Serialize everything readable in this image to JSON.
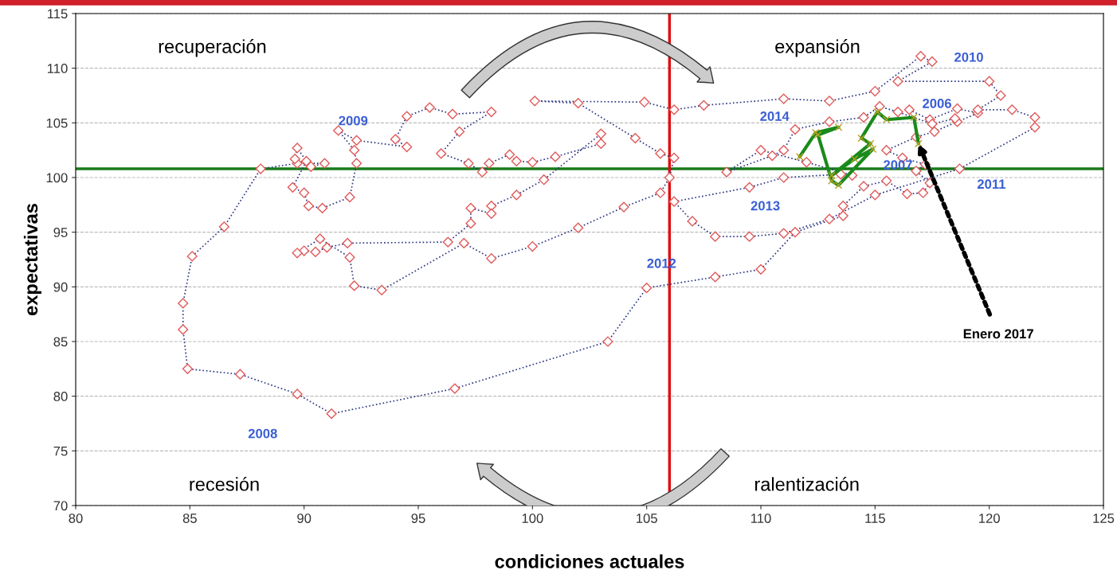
{
  "chart_data": {
    "type": "line",
    "xlabel": "condiciones actuales",
    "ylabel": "expectativas",
    "xlim": [
      80,
      125
    ],
    "xticks": [
      80,
      85,
      90,
      95,
      100,
      105,
      110,
      115,
      120,
      125
    ],
    "ylim": [
      70,
      115
    ],
    "yticks": [
      70,
      75,
      80,
      85,
      90,
      95,
      100,
      105,
      110,
      115
    ],
    "grid": "y",
    "series": [
      {
        "color": "#2b3580",
        "marker": "diamond",
        "line_style": "dotted",
        "x": [
          116.5,
          117.4,
          118.6,
          119.5,
          118.6,
          117.6,
          116.8,
          115.5,
          116.2,
          117.2,
          116.8,
          117.4,
          117.1,
          116.4,
          115.5,
          114.5,
          113.6,
          113.6,
          111.5,
          110.0,
          108.0,
          105.0,
          103.3,
          96.6,
          91.2,
          89.7,
          87.2,
          84.9,
          84.7,
          84.7,
          85.1,
          86.5,
          88.1,
          89.7,
          90.9,
          90.3,
          89.6,
          89.7,
          90.1,
          89.5,
          90.0,
          90.2,
          90.8,
          92.0,
          92.3,
          92.2,
          91.5,
          92.3,
          94.5,
          94.0,
          94.5,
          95.5,
          96.5,
          98.2,
          96.8,
          96.0,
          97.2,
          97.8,
          98.1,
          99.0,
          99.3,
          100.0,
          101.0,
          103.0,
          103.0,
          100.5,
          99.3,
          98.2,
          98.2,
          97.3,
          97.3,
          96.3,
          91.9,
          91.0,
          90.5,
          90.0,
          89.7,
          90.7,
          92.0,
          92.2,
          93.4,
          97.0,
          98.2,
          100.0,
          102.0,
          104.0,
          105.6,
          106.0,
          106.2,
          105.6,
          104.5,
          102.0,
          100.1,
          104.9,
          106.2,
          107.5,
          111.0,
          113.0,
          115.0,
          117.0,
          117.5,
          116.0,
          120.0,
          120.5,
          119.5,
          121.0,
          122.0,
          122.0,
          118.7,
          115.0,
          113.0,
          111.0,
          109.5,
          108.0,
          107.0,
          106.2,
          109.5,
          111.0,
          113.5,
          114.0,
          112.0,
          110.0,
          108.5,
          110.5,
          111.0,
          111.5,
          113.0,
          114.5,
          115.2,
          116.0,
          117.5,
          118.5
        ],
        "values": [
          106.2,
          105.3,
          106.3,
          105.9,
          105.1,
          104.2,
          103.7,
          102.5,
          101.8,
          101.2,
          100.6,
          99.5,
          98.6,
          98.5,
          99.7,
          99.2,
          97.4,
          96.5,
          95.0,
          91.6,
          90.9,
          89.9,
          85.0,
          80.7,
          78.4,
          80.2,
          82.0,
          82.5,
          86.1,
          88.5,
          92.8,
          95.5,
          100.8,
          101.3,
          101.3,
          101.0,
          101.7,
          102.7,
          101.5,
          99.1,
          98.6,
          97.4,
          97.2,
          98.2,
          101.3,
          102.5,
          104.3,
          103.4,
          102.8,
          103.5,
          105.6,
          106.4,
          105.8,
          106.0,
          104.2,
          102.2,
          101.3,
          100.5,
          101.3,
          102.1,
          101.5,
          101.4,
          101.9,
          103.1,
          104.0,
          99.8,
          98.4,
          97.4,
          96.7,
          97.2,
          95.8,
          94.1,
          94.0,
          93.6,
          93.2,
          93.3,
          93.1,
          94.4,
          92.7,
          90.1,
          89.7,
          94.0,
          92.6,
          93.7,
          95.4,
          97.3,
          98.6,
          100.0,
          101.8,
          102.2,
          103.6,
          106.8,
          107.0,
          106.9,
          106.2,
          106.6,
          107.2,
          107.0,
          107.9,
          111.1,
          110.6,
          108.8,
          108.8,
          107.5,
          106.2,
          106.2,
          105.5,
          104.6,
          100.8,
          98.4,
          96.2,
          94.9,
          94.6,
          94.6,
          96.0,
          97.8,
          99.1,
          100.0,
          100.3,
          100.2,
          101.4,
          102.5,
          100.5,
          102.0,
          102.5,
          104.4,
          105.1,
          105.5,
          106.5,
          106.0,
          104.9,
          105.4
        ]
      },
      {
        "color": "#1a8a1a",
        "marker": "cross",
        "line_style": "solid",
        "x": [
          111.7,
          112.4,
          113.4,
          112.5,
          113.1,
          113.4,
          114.9,
          114.1,
          113.1,
          114.8,
          114.4,
          115.1,
          115.5,
          116.7,
          116.9
        ],
        "values": [
          101.9,
          104.1,
          104.6,
          103.9,
          99.7,
          99.3,
          102.6,
          101.7,
          100.2,
          103.1,
          103.6,
          106.0,
          105.3,
          105.5,
          103.1
        ]
      }
    ],
    "ref_lines": [
      {
        "axis": "y",
        "value": 100.8,
        "color": "#1a7a1a"
      },
      {
        "axis": "x",
        "value": 106,
        "color": "#dd1111"
      }
    ],
    "annotations": [
      "recuperación",
      "expansión",
      "recesión",
      "ralentización",
      "2006",
      "2007",
      "2008",
      "2009",
      "2010",
      "2011",
      "2012",
      "2013",
      "2014",
      {
        "text": "Enero 2017",
        "x": 116.9,
        "y": 103.1
      }
    ]
  }
}
